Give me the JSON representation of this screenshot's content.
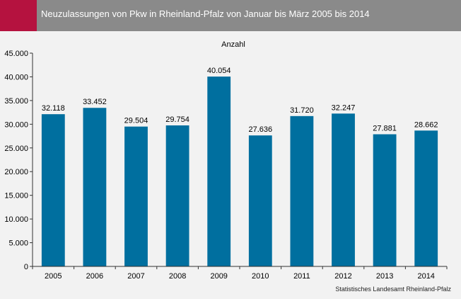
{
  "header": {
    "title": "Neuzulassungen von Pkw in Rheinland-Pfalz von Januar bis März 2005 bis 2014"
  },
  "footer": {
    "source": "Statistisches Landesamt Rheinland-Pfalz"
  },
  "colors": {
    "accent": "#b5123f",
    "header_bg": "#8a8a8a",
    "bar": "#006f9f",
    "background": "#f2f2f2"
  },
  "chart_data": {
    "type": "bar",
    "title": "Anzahl",
    "categories": [
      "2005",
      "2006",
      "2007",
      "2008",
      "2009",
      "2010",
      "2011",
      "2012",
      "2013",
      "2014"
    ],
    "values": [
      32118,
      33452,
      29504,
      29754,
      40054,
      27636,
      31720,
      32247,
      27881,
      28662
    ],
    "value_labels": [
      "32.118",
      "33.452",
      "29.504",
      "29.754",
      "40.054",
      "27.636",
      "31.720",
      "32.247",
      "27.881",
      "28.662"
    ],
    "yticks": [
      0,
      5000,
      10000,
      15000,
      20000,
      25000,
      30000,
      35000,
      40000,
      45000
    ],
    "ytick_labels": [
      "0",
      "5.000",
      "10.000",
      "15.000",
      "20.000",
      "25.000",
      "30.000",
      "35.000",
      "40.000",
      "45.000"
    ],
    "ylim": [
      0,
      45000
    ],
    "grid": false,
    "legend": "none"
  }
}
